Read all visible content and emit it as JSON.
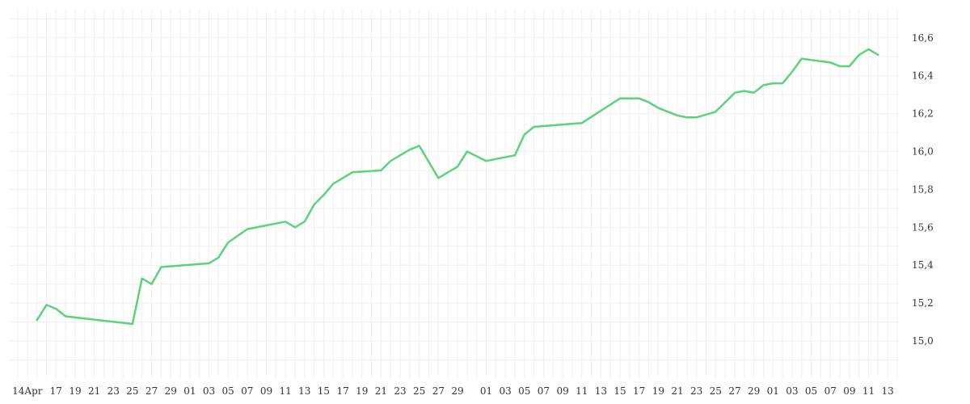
{
  "chart_data": {
    "type": "line",
    "title": "",
    "xlabel": "",
    "ylabel": "",
    "grid": true,
    "legend": "none",
    "line_color": "#5cd27c",
    "grid_color": "#efefef",
    "y_axis_position": "right",
    "ylim": [
      14.8,
      16.8
    ],
    "y_ticks": [
      "15,0",
      "15,2",
      "15,4",
      "15,6",
      "15,8",
      "16,0",
      "16,2",
      "16,4",
      "16,6"
    ],
    "y_tick_values": [
      15.0,
      15.2,
      15.4,
      15.6,
      15.8,
      16.0,
      16.2,
      16.4,
      16.6
    ],
    "x_ticks": [
      "14Apr",
      "17",
      "19",
      "21",
      "23",
      "25",
      "27",
      "29",
      "01",
      "03",
      "05",
      "07",
      "09",
      "11",
      "13",
      "15",
      "17",
      "19",
      "21",
      "23",
      "25",
      "27",
      "29",
      "01",
      "03",
      "05",
      "07",
      "09",
      "11",
      "13",
      "15",
      "17",
      "19",
      "21",
      "23",
      "25",
      "27",
      "29",
      "01",
      "03",
      "05",
      "07",
      "09",
      "11",
      "13"
    ],
    "x_tick_dates": [
      "2024-04-14",
      "2024-04-17",
      "2024-04-19",
      "2024-04-21",
      "2024-04-23",
      "2024-04-25",
      "2024-04-27",
      "2024-04-29",
      "2024-05-01",
      "2024-05-03",
      "2024-05-05",
      "2024-05-07",
      "2024-05-09",
      "2024-05-11",
      "2024-05-13",
      "2024-05-15",
      "2024-05-17",
      "2024-05-19",
      "2024-05-21",
      "2024-05-23",
      "2024-05-25",
      "2024-05-27",
      "2024-05-29",
      "2024-06-01",
      "2024-06-03",
      "2024-06-05",
      "2024-06-07",
      "2024-06-09",
      "2024-06-11",
      "2024-06-13",
      "2024-06-15",
      "2024-06-17",
      "2024-06-19",
      "2024-06-21",
      "2024-06-23",
      "2024-06-25",
      "2024-06-27",
      "2024-06-29",
      "2024-07-01",
      "2024-07-03",
      "2024-07-05",
      "2024-07-07",
      "2024-07-09",
      "2024-07-11",
      "2024-07-13"
    ],
    "series": [
      {
        "x": [
          "2024-04-15",
          "2024-04-16",
          "2024-04-17",
          "2024-04-18",
          "2024-04-25",
          "2024-04-26",
          "2024-04-27",
          "2024-04-28",
          "2024-05-03",
          "2024-05-04",
          "2024-05-05",
          "2024-05-07",
          "2024-05-11",
          "2024-05-12",
          "2024-05-13",
          "2024-05-14",
          "2024-05-15",
          "2024-05-16",
          "2024-05-18",
          "2024-05-21",
          "2024-05-22",
          "2024-05-24",
          "2024-05-25",
          "2024-05-27",
          "2024-05-29",
          "2024-05-30",
          "2024-06-01",
          "2024-06-04",
          "2024-06-05",
          "2024-06-06",
          "2024-06-11",
          "2024-06-15",
          "2024-06-17",
          "2024-06-18",
          "2024-06-19",
          "2024-06-20",
          "2024-06-21",
          "2024-06-22",
          "2024-06-23",
          "2024-06-25",
          "2024-06-27",
          "2024-06-28",
          "2024-06-29",
          "2024-06-30",
          "2024-07-01",
          "2024-07-02",
          "2024-07-03",
          "2024-07-04",
          "2024-07-07",
          "2024-07-08",
          "2024-07-09",
          "2024-07-10",
          "2024-07-11",
          "2024-07-12"
        ],
        "y": [
          15.11,
          15.19,
          15.17,
          15.13,
          15.09,
          15.33,
          15.3,
          15.39,
          15.41,
          15.44,
          15.52,
          15.59,
          15.63,
          15.6,
          15.63,
          15.72,
          15.77,
          15.83,
          15.89,
          15.9,
          15.95,
          16.01,
          16.03,
          15.86,
          15.92,
          16.0,
          15.95,
          15.98,
          16.09,
          16.13,
          16.15,
          16.28,
          16.28,
          16.26,
          16.23,
          16.21,
          16.19,
          16.18,
          16.18,
          16.21,
          16.31,
          16.32,
          16.31,
          16.35,
          16.36,
          16.36,
          16.42,
          16.49,
          16.47,
          16.45,
          16.45,
          16.51,
          16.54,
          16.51
        ]
      }
    ]
  }
}
